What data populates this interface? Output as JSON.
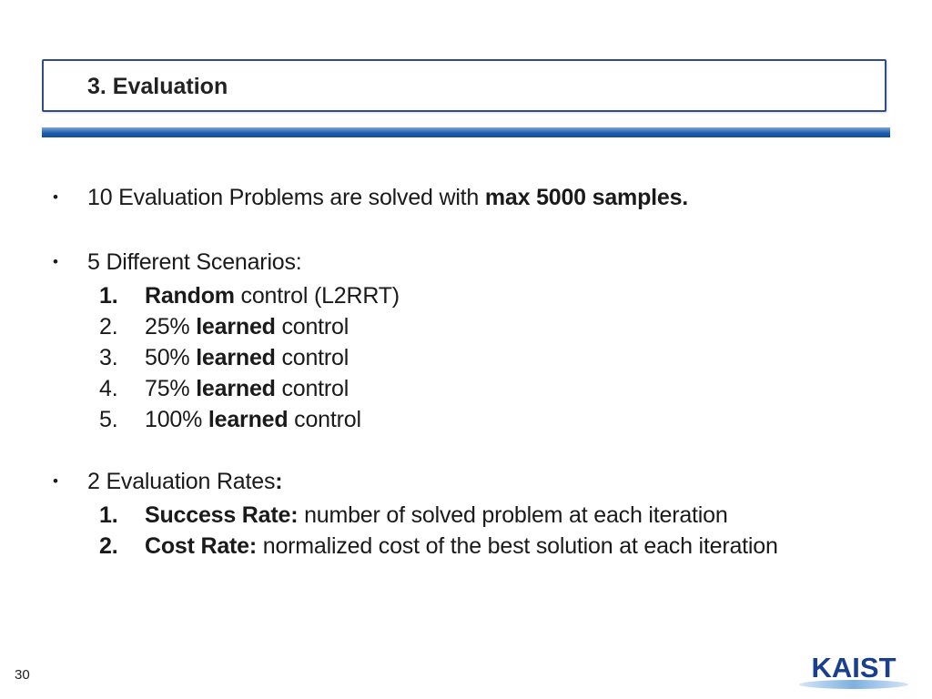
{
  "header": {
    "title": "3. Evaluation"
  },
  "bullets": {
    "b1": {
      "text": "10 Evaluation Problems are solved with ",
      "bold": "max 5000 samples."
    },
    "b2": {
      "text": "5 Different Scenarios:",
      "items": [
        {
          "num": "1.",
          "pre": "",
          "bold": "Random",
          "post": " control (L2RRT)"
        },
        {
          "num": "2.",
          "pre": "25% ",
          "bold": "learned",
          "post": " control"
        },
        {
          "num": "3.",
          "pre": "50% ",
          "bold": "learned",
          "post": " control"
        },
        {
          "num": "4.",
          "pre": "75% ",
          "bold": "learned",
          "post": " control"
        },
        {
          "num": "5.",
          "pre": "100% ",
          "bold": "learned",
          "post": " control"
        }
      ]
    },
    "b3": {
      "text": "2 Evaluation Rates",
      "colon": ":",
      "items": [
        {
          "num": "1.",
          "bold": "Success Rate:",
          "post": " number of solved problem at each iteration"
        },
        {
          "num": "2.",
          "bold": "Cost Rate:",
          "post": " normalized cost of the best solution at each iteration"
        }
      ]
    }
  },
  "footer": {
    "page_number": "30",
    "logo_text": "KAIST"
  },
  "colors": {
    "accent": "#2f4e86",
    "bar": "#1e5eb0"
  }
}
